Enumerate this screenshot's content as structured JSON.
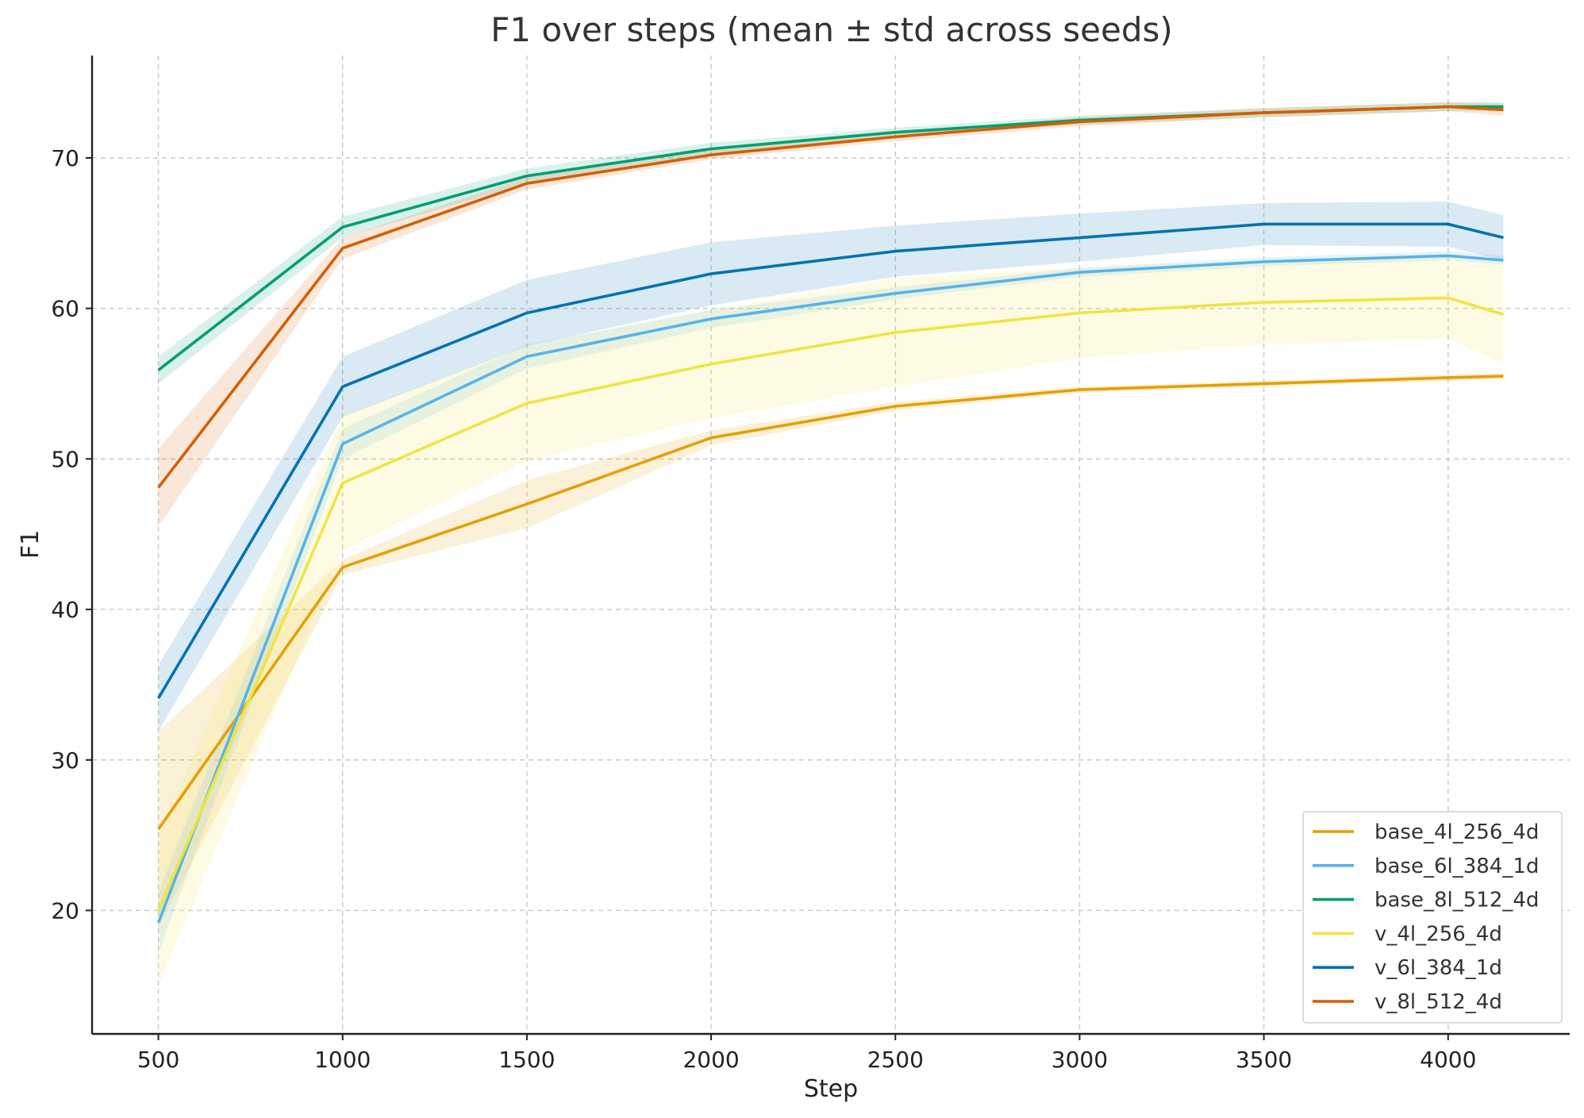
{
  "chart_data": {
    "type": "line",
    "title": "F1 over steps (mean ± std across seeds)",
    "xlabel": "Step",
    "ylabel": "F1",
    "xlim": [
      320,
      4330
    ],
    "ylim": [
      11.8,
      76.8
    ],
    "xticks": [
      500,
      1000,
      1500,
      2000,
      2500,
      3000,
      3500,
      4000
    ],
    "yticks": [
      20,
      30,
      40,
      50,
      60,
      70
    ],
    "grid": true,
    "legend_position": "lower-right",
    "x": [
      500,
      1000,
      1500,
      2000,
      2500,
      3000,
      3500,
      4000,
      4150
    ],
    "series": [
      {
        "name": "base_4l_256_4d",
        "color": "#E69F00",
        "values": [
          25.4,
          42.8,
          47.0,
          51.4,
          53.5,
          54.6,
          55.0,
          55.4,
          55.5
        ],
        "std": [
          6.5,
          0.5,
          1.6,
          0.5,
          0.3,
          0.2,
          0.2,
          0.2,
          0.2
        ]
      },
      {
        "name": "base_6l_384_1d",
        "color": "#56B4E9",
        "values": [
          19.2,
          51.0,
          56.8,
          59.3,
          61.0,
          62.4,
          63.1,
          63.5,
          63.2
        ],
        "std": [
          2.0,
          1.0,
          0.8,
          0.6,
          0.4,
          0.3,
          0.3,
          0.3,
          0.3
        ]
      },
      {
        "name": "base_8l_512_4d",
        "color": "#009E73",
        "values": [
          55.9,
          65.4,
          68.8,
          70.6,
          71.7,
          72.5,
          73.0,
          73.4,
          73.4
        ],
        "std": [
          0.9,
          0.7,
          0.5,
          0.4,
          0.3,
          0.3,
          0.3,
          0.3,
          0.3
        ]
      },
      {
        "name": "v_4l_256_4d",
        "color": "#F0E442",
        "values": [
          20.0,
          48.4,
          53.7,
          56.3,
          58.4,
          59.7,
          60.4,
          60.7,
          59.6
        ],
        "std": [
          5.0,
          4.5,
          3.8,
          3.6,
          3.6,
          3.0,
          2.8,
          2.7,
          3.3
        ]
      },
      {
        "name": "v_6l_384_1d",
        "color": "#0072B2",
        "values": [
          34.1,
          54.8,
          59.7,
          62.3,
          63.8,
          64.7,
          65.6,
          65.6,
          64.7
        ],
        "std": [
          2.2,
          2.0,
          2.2,
          2.1,
          1.7,
          1.6,
          1.4,
          1.5,
          1.5
        ]
      },
      {
        "name": "v_8l_512_4d",
        "color": "#D55E00",
        "values": [
          48.1,
          64.0,
          68.3,
          70.2,
          71.4,
          72.4,
          73.0,
          73.4,
          73.2
        ],
        "std": [
          2.6,
          0.7,
          0.4,
          0.3,
          0.3,
          0.3,
          0.3,
          0.3,
          0.4
        ]
      }
    ]
  }
}
